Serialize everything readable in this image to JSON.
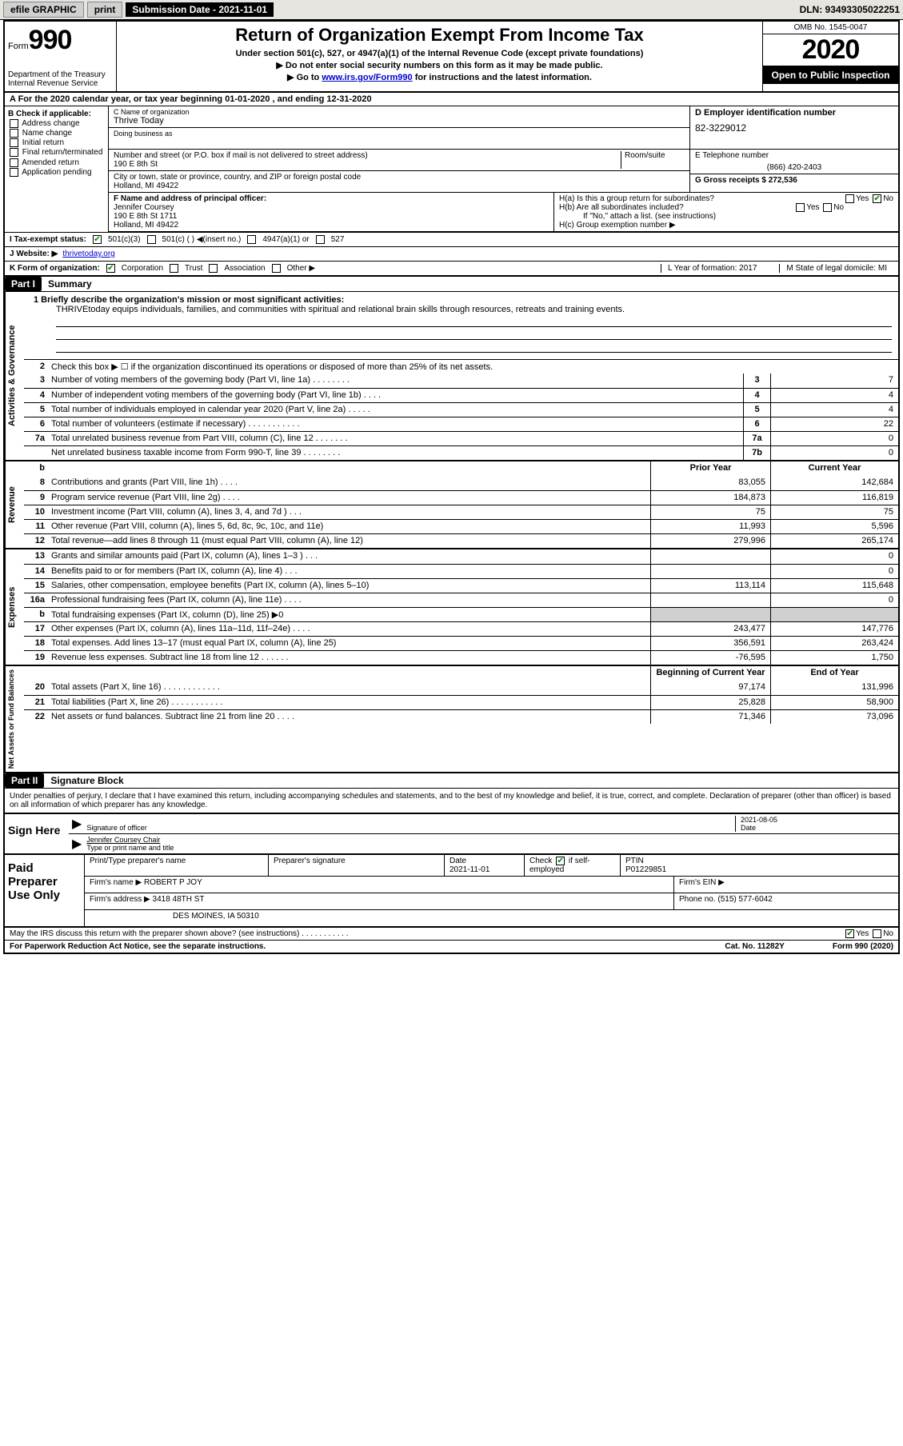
{
  "topbar": {
    "efile": "efile GRAPHIC",
    "print": "print",
    "sub_label": "Submission Date - 2021-11-01",
    "dln": "DLN: 93493305022251"
  },
  "header": {
    "form_label": "Form",
    "form_number": "990",
    "dept": "Department of the Treasury",
    "irs": "Internal Revenue Service",
    "title": "Return of Organization Exempt From Income Tax",
    "subtitle": "Under section 501(c), 527, or 4947(a)(1) of the Internal Revenue Code (except private foundations)",
    "note1": "▶ Do not enter social security numbers on this form as it may be made public.",
    "note2_pre": "▶ Go to ",
    "note2_link": "www.irs.gov/Form990",
    "note2_post": " for instructions and the latest information.",
    "omb": "OMB No. 1545-0047",
    "year": "2020",
    "open": "Open to Public Inspection"
  },
  "rowA": "A For the 2020 calendar year, or tax year beginning 01-01-2020   , and ending 12-31-2020",
  "colB": {
    "label": "B Check if applicable:",
    "opts": [
      "Address change",
      "Name change",
      "Initial return",
      "Final return/terminated",
      "Amended return",
      "Application pending"
    ]
  },
  "nameblock": {
    "c_lbl": "C Name of organization",
    "c_val": "Thrive Today",
    "dba_lbl": "Doing business as",
    "addr_lbl": "Number and street (or P.O. box if mail is not delivered to street address)",
    "room_lbl": "Room/suite",
    "addr_val": "190 E 8th St",
    "city_lbl": "City or town, state or province, country, and ZIP or foreign postal code",
    "city_val": "Holland, MI  49422"
  },
  "de": {
    "d_lbl": "D Employer identification number",
    "d_val": "82-3229012",
    "e_lbl": "E Telephone number",
    "e_val": "(866) 420-2403",
    "g_lbl": "G Gross receipts $ 272,536"
  },
  "f": {
    "lbl": "F  Name and address of principal officer:",
    "name": "Jennifer Coursey",
    "addr": "190 E 8th St 1711",
    "city": "Holland, MI  49422"
  },
  "h": {
    "a": "H(a)  Is this a group return for subordinates?",
    "a_yes": "Yes",
    "a_no": "No",
    "b": "H(b)  Are all subordinates included?",
    "b_yes": "Yes",
    "b_no": "No",
    "b_note": "If \"No,\" attach a list. (see instructions)",
    "c": "H(c)  Group exemption number ▶"
  },
  "status": {
    "i_lbl": "I  Tax-exempt status:",
    "c3": "501(c)(3)",
    "c": "501(c) (  ) ◀(insert no.)",
    "a1": "4947(a)(1) or",
    "s527": "527"
  },
  "website": {
    "lbl": "J  Website: ▶",
    "val": "thrivetoday.org"
  },
  "korg": {
    "lbl": "K Form of organization:",
    "corp": "Corporation",
    "trust": "Trust",
    "assoc": "Association",
    "other": "Other ▶",
    "l_lbl": "L Year of formation: 2017",
    "m_lbl": "M State of legal domicile: MI"
  },
  "partI": {
    "hdr": "Part I",
    "title": "Summary",
    "line1_lbl": "1  Briefly describe the organization's mission or most significant activities:",
    "mission": "THRIVEtoday equips individuals, families, and communities with spiritual and relational brain skills through resources, retreats and training events.",
    "line2": "Check this box ▶ ☐  if the organization discontinued its operations or disposed of more than 25% of its net assets."
  },
  "gov_rows": [
    {
      "n": "3",
      "d": "Number of voting members of the governing body (Part VI, line 1a)  .    .    .    .    .    .    .    .",
      "b": "3",
      "v": "7"
    },
    {
      "n": "4",
      "d": "Number of independent voting members of the governing body (Part VI, line 1b)  .    .    .    .",
      "b": "4",
      "v": "4"
    },
    {
      "n": "5",
      "d": "Total number of individuals employed in calendar year 2020 (Part V, line 2a)  .    .    .    .    .",
      "b": "5",
      "v": "4"
    },
    {
      "n": "6",
      "d": "Total number of volunteers (estimate if necessary)   .    .    .    .    .    .    .    .    .    .    .",
      "b": "6",
      "v": "22"
    },
    {
      "n": "7a",
      "d": "Total unrelated business revenue from Part VIII, column (C), line 12  .    .    .    .    .    .    .",
      "b": "7a",
      "v": "0"
    },
    {
      "n": "",
      "d": "Net unrelated business taxable income from Form 990-T, line 39   .    .    .    .    .    .    .    .",
      "b": "7b",
      "v": "0"
    }
  ],
  "pycy_hdr": {
    "py": "Prior Year",
    "cy": "Current Year"
  },
  "rev_rows": [
    {
      "n": "8",
      "d": "Contributions and grants (Part VIII, line 1h)   .    .    .    .",
      "py": "83,055",
      "cy": "142,684"
    },
    {
      "n": "9",
      "d": "Program service revenue (Part VIII, line 2g)   .    .    .    .",
      "py": "184,873",
      "cy": "116,819"
    },
    {
      "n": "10",
      "d": "Investment income (Part VIII, column (A), lines 3, 4, and 7d )   .    .    .",
      "py": "75",
      "cy": "75"
    },
    {
      "n": "11",
      "d": "Other revenue (Part VIII, column (A), lines 5, 6d, 8c, 9c, 10c, and 11e)",
      "py": "11,993",
      "cy": "5,596"
    },
    {
      "n": "12",
      "d": "Total revenue—add lines 8 through 11 (must equal Part VIII, column (A), line 12)",
      "py": "279,996",
      "cy": "265,174"
    }
  ],
  "exp_rows": [
    {
      "n": "13",
      "d": "Grants and similar amounts paid (Part IX, column (A), lines 1–3 )  .    .    .",
      "py": "",
      "cy": "0"
    },
    {
      "n": "14",
      "d": "Benefits paid to or for members (Part IX, column (A), line 4)  .    .    .",
      "py": "",
      "cy": "0"
    },
    {
      "n": "15",
      "d": "Salaries, other compensation, employee benefits (Part IX, column (A), lines 5–10)",
      "py": "113,114",
      "cy": "115,648"
    },
    {
      "n": "16a",
      "d": "Professional fundraising fees (Part IX, column (A), line 11e)  .    .    .    .",
      "py": "",
      "cy": "0"
    },
    {
      "n": "b",
      "d": "Total fundraising expenses (Part IX, column (D), line 25) ▶0",
      "py": "SHADE",
      "cy": "SHADE"
    },
    {
      "n": "17",
      "d": "Other expenses (Part IX, column (A), lines 11a–11d, 11f–24e)  .    .    .    .",
      "py": "243,477",
      "cy": "147,776"
    },
    {
      "n": "18",
      "d": "Total expenses. Add lines 13–17 (must equal Part IX, column (A), line 25)",
      "py": "356,591",
      "cy": "263,424"
    },
    {
      "n": "19",
      "d": "Revenue less expenses. Subtract line 18 from line 12  .    .    .    .    .    .",
      "py": "-76,595",
      "cy": "1,750"
    }
  ],
  "na_hdr": {
    "py": "Beginning of Current Year",
    "cy": "End of Year"
  },
  "na_rows": [
    {
      "n": "20",
      "d": "Total assets (Part X, line 16)  .    .    .    .    .    .    .    .    .    .    .    .",
      "py": "97,174",
      "cy": "131,996"
    },
    {
      "n": "21",
      "d": "Total liabilities (Part X, line 26)  .    .    .    .    .    .    .    .    .    .    .",
      "py": "25,828",
      "cy": "58,900"
    },
    {
      "n": "22",
      "d": "Net assets or fund balances. Subtract line 21 from line 20  .    .    .    .",
      "py": "71,346",
      "cy": "73,096"
    }
  ],
  "partII": {
    "hdr": "Part II",
    "title": "Signature Block"
  },
  "sig_decl": "Under penalties of perjury, I declare that I have examined this return, including accompanying schedules and statements, and to the best of my knowledge and belief, it is true, correct, and complete. Declaration of preparer (other than officer) is based on all information of which preparer has any knowledge.",
  "sign": {
    "here": "Sign Here",
    "sig_lbl": "Signature of officer",
    "date_lbl": "Date",
    "date_val": "2021-08-05",
    "name": "Jennifer Coursey  Chair",
    "name_lbl": "Type or print name and title"
  },
  "prep": {
    "title": "Paid Preparer Use Only",
    "r1": {
      "c1": "Print/Type preparer's name",
      "c2": "Preparer's signature",
      "c3_lbl": "Date",
      "c3": "2021-11-01",
      "c4_lbl": "Check",
      "c4_txt": "if self-employed",
      "c5_lbl": "PTIN",
      "c5": "P01229851"
    },
    "r2": {
      "lbl": "Firm's name    ▶",
      "val": "ROBERT P JOY",
      "ein_lbl": "Firm's EIN ▶"
    },
    "r3": {
      "lbl": "Firm's address ▶",
      "val": "3418 48TH ST",
      "phone_lbl": "Phone no. (515) 577-6042"
    },
    "r3b": "DES MOINES, IA  50310"
  },
  "discuss": {
    "q": "May the IRS discuss this return with the preparer shown above? (see instructions)   .    .    .    .    .    .    .    .    .    .    .",
    "yes": "Yes",
    "no": "No"
  },
  "footer": {
    "pra": "For Paperwork Reduction Act Notice, see the separate instructions.",
    "cat": "Cat. No. 11282Y",
    "form": "Form 990 (2020)"
  },
  "colors": {
    "link": "#0000cc",
    "check": "#008000",
    "shade": "#d0d0d0"
  }
}
